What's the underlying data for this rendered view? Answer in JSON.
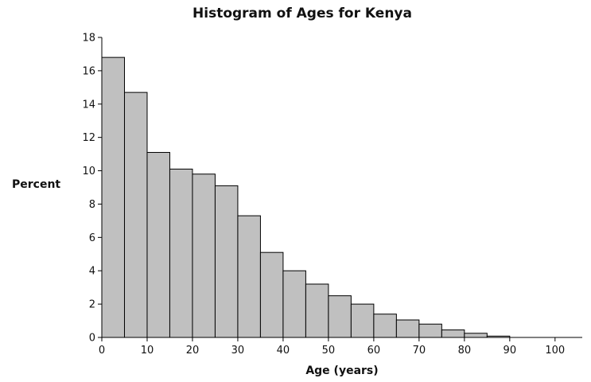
{
  "chart_data": {
    "type": "bar",
    "title": "Histogram of Ages for Kenya",
    "xlabel": "Age (years)",
    "ylabel": "Percent",
    "bin_width": 5,
    "bins": [
      {
        "start": 0,
        "end": 5,
        "value": 16.8
      },
      {
        "start": 5,
        "end": 10,
        "value": 14.7
      },
      {
        "start": 10,
        "end": 15,
        "value": 11.1
      },
      {
        "start": 15,
        "end": 20,
        "value": 10.1
      },
      {
        "start": 20,
        "end": 25,
        "value": 9.8
      },
      {
        "start": 25,
        "end": 30,
        "value": 9.1
      },
      {
        "start": 30,
        "end": 35,
        "value": 7.3
      },
      {
        "start": 35,
        "end": 40,
        "value": 5.1
      },
      {
        "start": 40,
        "end": 45,
        "value": 4.0
      },
      {
        "start": 45,
        "end": 50,
        "value": 3.2
      },
      {
        "start": 50,
        "end": 55,
        "value": 2.5
      },
      {
        "start": 55,
        "end": 60,
        "value": 2.0
      },
      {
        "start": 60,
        "end": 65,
        "value": 1.4
      },
      {
        "start": 65,
        "end": 70,
        "value": 1.05
      },
      {
        "start": 70,
        "end": 75,
        "value": 0.8
      },
      {
        "start": 75,
        "end": 80,
        "value": 0.45
      },
      {
        "start": 80,
        "end": 85,
        "value": 0.25
      },
      {
        "start": 85,
        "end": 90,
        "value": 0.08
      }
    ],
    "xlim": [
      0,
      106
    ],
    "ylim": [
      0,
      18
    ],
    "x_ticks": [
      0,
      10,
      20,
      30,
      40,
      50,
      60,
      70,
      80,
      90,
      100
    ],
    "x_tick_labels": [
      "0",
      "10",
      "20",
      "30",
      "40",
      "50",
      "60",
      "70",
      "80",
      "90",
      "100"
    ],
    "y_ticks": [
      0,
      2,
      4,
      6,
      8,
      10,
      12,
      14,
      16,
      18
    ],
    "y_tick_labels": [
      "0",
      "2",
      "4",
      "6",
      "8",
      "10",
      "12",
      "14",
      "16",
      "18"
    ],
    "grid": false,
    "colors": {
      "bar_fill": "#c0c0c0",
      "bar_stroke": "#000000",
      "axis": "#000000"
    }
  }
}
